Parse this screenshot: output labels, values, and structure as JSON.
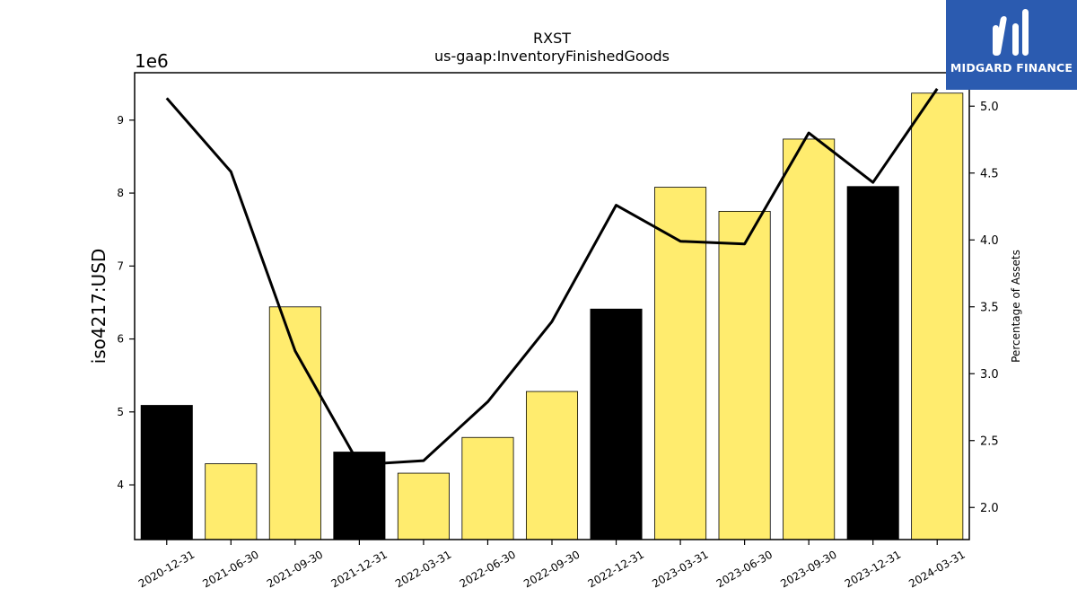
{
  "chart_data": {
    "type": "bar",
    "title": "RXST",
    "subtitle": "us-gaap:InventoryFinishedGoods",
    "xlabel": "",
    "ylabel": "iso4217:USD",
    "y_scale_label": "1e6",
    "y2label": "Percentage of Assets",
    "categories": [
      "2020-12-31",
      "2021-06-30",
      "2021-09-30",
      "2021-12-31",
      "2022-03-31",
      "2022-06-30",
      "2022-09-30",
      "2022-12-31",
      "2023-03-31",
      "2023-06-30",
      "2023-09-30",
      "2023-12-31",
      "2024-03-31"
    ],
    "values": [
      5.09,
      4.29,
      6.44,
      4.45,
      4.16,
      4.65,
      5.28,
      6.41,
      8.08,
      7.75,
      8.74,
      8.09,
      9.37
    ],
    "bar_colors": [
      "#000000",
      "#ffec6e",
      "#ffec6e",
      "#000000",
      "#ffec6e",
      "#ffec6e",
      "#ffec6e",
      "#000000",
      "#ffec6e",
      "#ffec6e",
      "#ffec6e",
      "#000000",
      "#ffec6e"
    ],
    "line_values": [
      5.06,
      4.51,
      3.17,
      2.32,
      2.35,
      2.79,
      3.39,
      4.26,
      3.99,
      3.97,
      4.8,
      4.43,
      5.13
    ],
    "ylim": [
      3.25,
      9.65
    ],
    "y2lim": [
      1.76,
      5.25
    ],
    "yticks": [
      4,
      5,
      6,
      7,
      8,
      9
    ],
    "y2ticks": [
      2.0,
      2.5,
      3.0,
      3.5,
      4.0,
      4.5,
      5.0
    ],
    "ytick_labels": [
      "4",
      "5",
      "6",
      "7",
      "8",
      "9"
    ],
    "y2tick_labels": [
      "2.0",
      "2.5",
      "3.0",
      "3.5",
      "4.0",
      "4.5",
      "5.0"
    ],
    "grid": false,
    "colors": {
      "bar_highlight": "#000000",
      "bar_default": "#ffec6e",
      "line": "#000000"
    }
  },
  "logo": {
    "text": "MIDGARD FINANCE",
    "background": "#2b5bb0"
  }
}
